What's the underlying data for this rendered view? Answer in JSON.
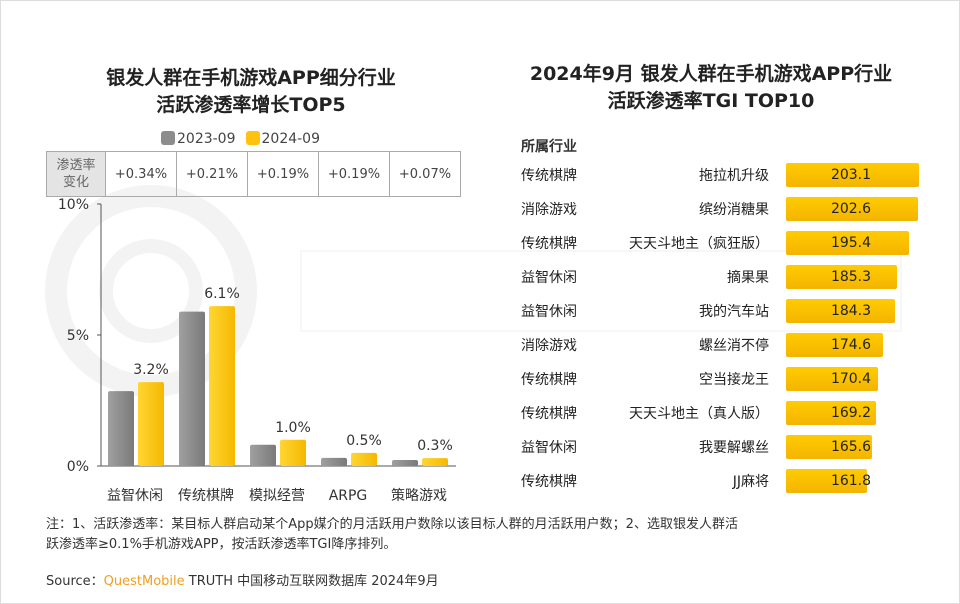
{
  "watermark": "QUESTMOBILE",
  "chart_data": [
    {
      "type": "bar",
      "title": "银发人群在手机游戏APP细分行业\n活跃渗透率增长TOP5",
      "title_lines": [
        "银发人群在手机游戏APP细分行业",
        "活跃渗透率增长TOP5"
      ],
      "categories": [
        "益智休闲",
        "传统棋牌",
        "模拟经营",
        "ARPG",
        "策略游戏"
      ],
      "series": [
        {
          "name": "2023-09",
          "color": "#8c8c8c",
          "values": [
            2.86,
            5.89,
            0.81,
            0.31,
            0.23
          ]
        },
        {
          "name": "2024-09",
          "color": "#ffc20e",
          "values": [
            3.2,
            6.1,
            1.0,
            0.5,
            0.3
          ]
        }
      ],
      "data_labels": [
        "3.2%",
        "6.1%",
        "1.0%",
        "0.5%",
        "0.3%"
      ],
      "yticks": [
        "0%",
        "5%",
        "10%"
      ],
      "ylim": [
        0,
        10
      ],
      "legend_position": "top",
      "change_table": {
        "header": [
          "渗透率",
          "变化"
        ],
        "values": [
          "+0.34%",
          "+0.21%",
          "+0.19%",
          "+0.19%",
          "+0.07%"
        ]
      }
    },
    {
      "type": "bar",
      "orientation": "horizontal",
      "title_lines": [
        "2024年9月 银发人群在手机游戏APP行业",
        "活跃渗透率TGI TOP10"
      ],
      "column_header": "所属行业",
      "rows": [
        {
          "industry": "传统棋牌",
          "app": "拖拉机升级",
          "tgi": 203.1,
          "label": "203.1"
        },
        {
          "industry": "消除游戏",
          "app": "缤纷消糖果",
          "tgi": 202.6,
          "label": "202.6"
        },
        {
          "industry": "传统棋牌",
          "app": "天天斗地主（疯狂版）",
          "tgi": 195.4,
          "label": "195.4"
        },
        {
          "industry": "益智休闲",
          "app": "摘果果",
          "tgi": 185.3,
          "label": "185.3"
        },
        {
          "industry": "益智休闲",
          "app": "我的汽车站",
          "tgi": 184.3,
          "label": "184.3"
        },
        {
          "industry": "消除游戏",
          "app": "螺丝消不停",
          "tgi": 174.6,
          "label": "174.6"
        },
        {
          "industry": "传统棋牌",
          "app": "空当接龙王",
          "tgi": 170.4,
          "label": "170.4"
        },
        {
          "industry": "传统棋牌",
          "app": "天天斗地主（真人版）",
          "tgi": 169.2,
          "label": "169.2"
        },
        {
          "industry": "益智休闲",
          "app": "我要解螺丝",
          "tgi": 165.6,
          "label": "165.6"
        },
        {
          "industry": "传统棋牌",
          "app": "JJ麻将",
          "tgi": 161.8,
          "label": "161.8"
        }
      ],
      "bar_color": "#ffc20e"
    }
  ],
  "note": [
    "注：1、活跃渗透率：某目标人群启动某个App媒介的月活跃用户数除以该目标人群的月活跃用户数；2、选取银发人群活",
    "跃渗透率≥0.1%手机游戏APP，按活跃渗透率TGI降序排列。"
  ],
  "source": {
    "prefix": "Source：",
    "brand": "QuestMobile",
    "rest": " TRUTH 中国移动互联网数据库 2024年9月"
  }
}
